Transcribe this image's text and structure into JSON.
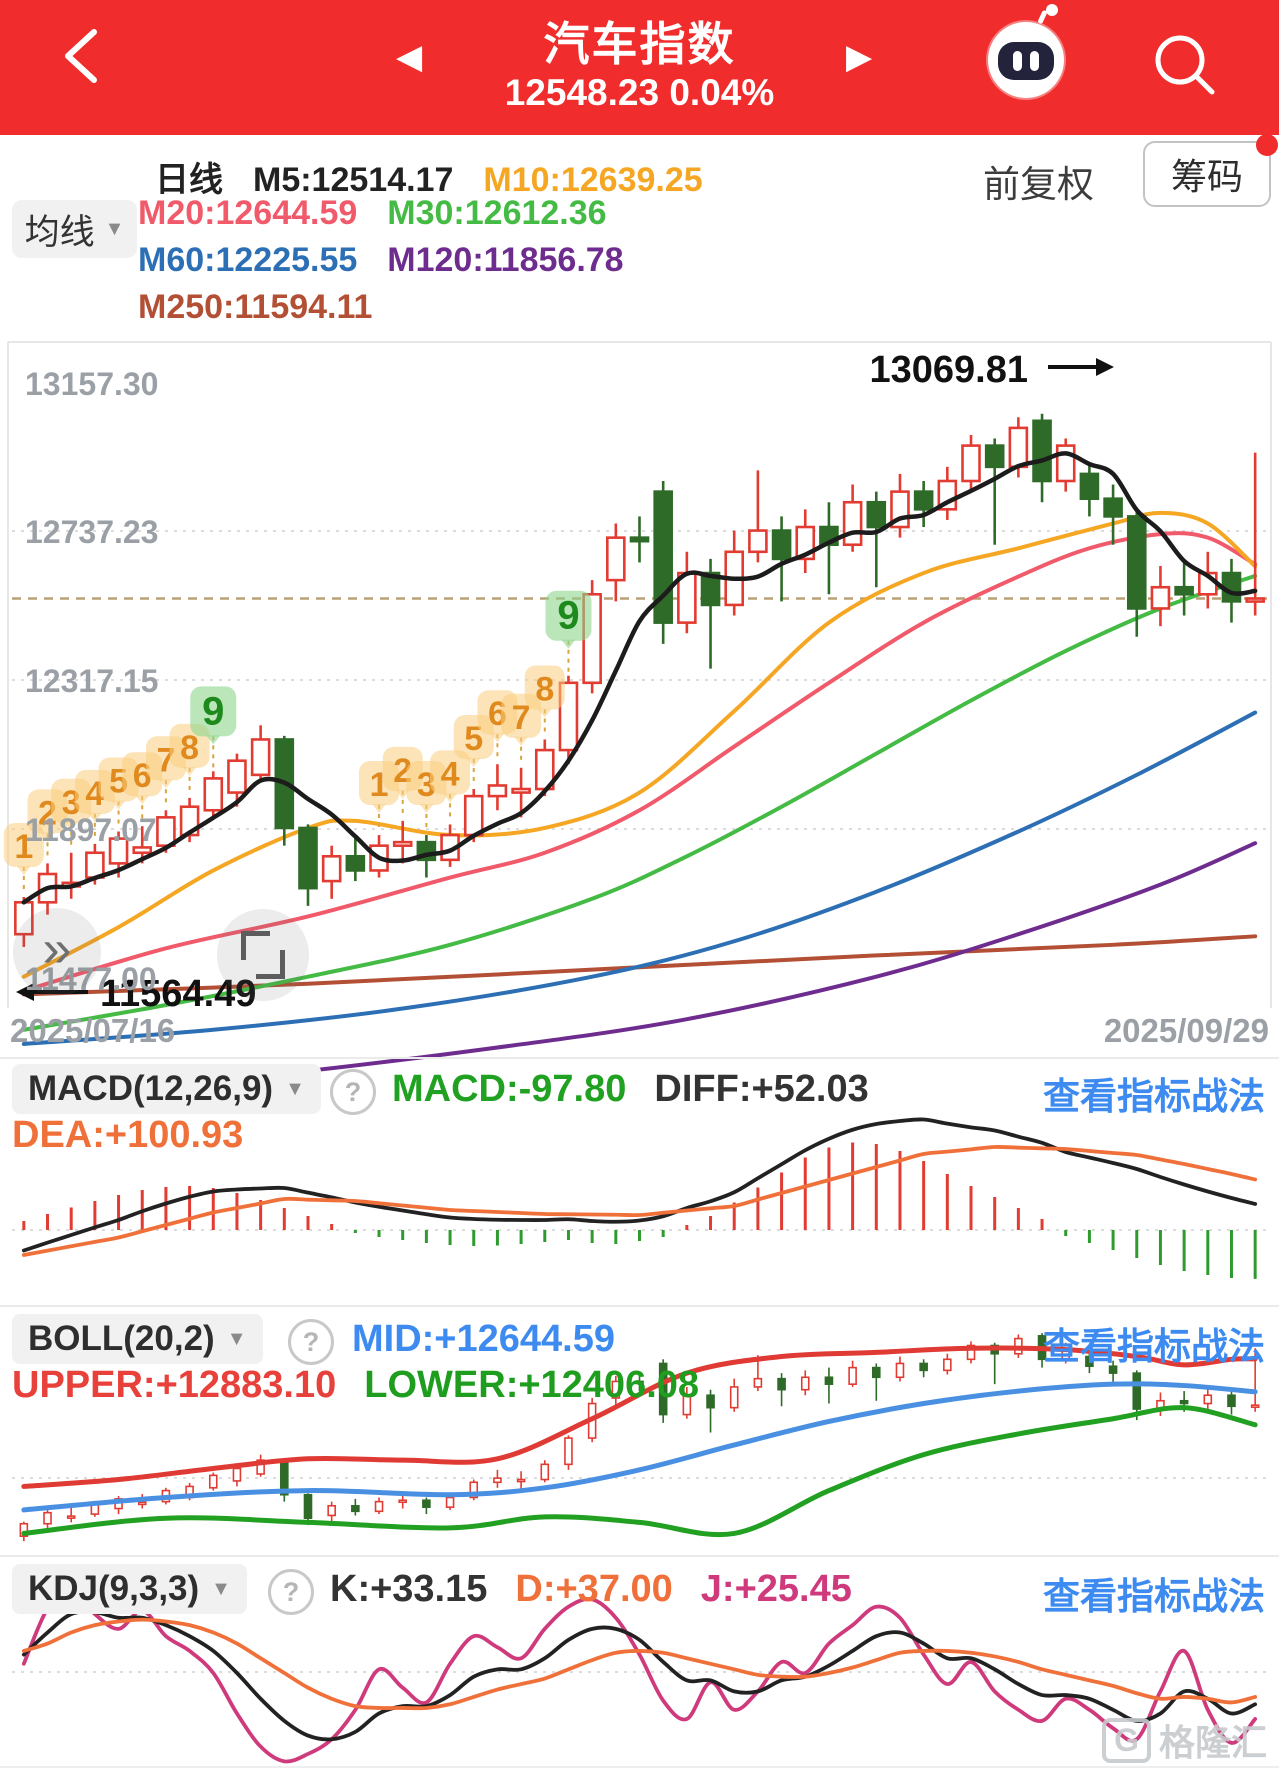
{
  "ui": {
    "help_glyph": "?",
    "dropdown_arrow": "▼",
    "prev_glyph": "◀",
    "next_glyph": "▶",
    "fast_glyph": "»"
  },
  "header": {
    "title": "汽车指数",
    "price_line": "12548.23 0.04%"
  },
  "toolbar": {
    "ma_dropdown_label": "均线",
    "period_label": "日线",
    "adjust_label": "前复权",
    "chips_button_label": "筹码",
    "ma_items": [
      {
        "text": "M5:12514.17",
        "color": "#222222"
      },
      {
        "text": "M10:12639.25",
        "color": "#f5a623"
      },
      {
        "text": "M20:12644.59",
        "color": "#f05a6a"
      },
      {
        "text": "M30:12612.36",
        "color": "#44bb44"
      },
      {
        "text": "M60:12225.55",
        "color": "#2d6fb5"
      },
      {
        "text": "M120:11856.78",
        "color": "#6e2d8e"
      },
      {
        "text": "M250:11594.11",
        "color": "#b24f35"
      }
    ],
    "ma_rows": [
      [
        0,
        1
      ],
      [
        2,
        3
      ],
      [
        4,
        5
      ],
      [
        6
      ]
    ]
  },
  "panels": {
    "macd": {
      "name": "MACD(12,26,9)",
      "link": "查看指标战法",
      "values": [
        {
          "text": "MACD:-97.80",
          "color": "#21a121"
        },
        {
          "text": "DIFF:+52.03",
          "color": "#333333"
        },
        {
          "text": "DEA:+100.93",
          "color": "#f0703a"
        }
      ],
      "rows": [
        [
          0,
          1
        ],
        [
          2
        ]
      ]
    },
    "boll": {
      "name": "BOLL(20,2)",
      "link": "查看指标战法",
      "values": [
        {
          "text": "MID:+12644.59",
          "color": "#3d8bf0"
        },
        {
          "text": "UPPER:+12883.10",
          "color": "#e8403a"
        },
        {
          "text": "LOWER:+12406.08",
          "color": "#1f9d1f"
        }
      ],
      "rows": [
        [
          0
        ],
        [
          1,
          2
        ]
      ]
    },
    "kdj": {
      "name": "KDJ(9,3,3)",
      "link": "查看指标战法",
      "values": [
        {
          "text": "K:+33.15",
          "color": "#333333"
        },
        {
          "text": "D:+37.00",
          "color": "#f0703a"
        },
        {
          "text": "J:+25.45",
          "color": "#cf3a7c"
        }
      ],
      "rows": [
        [
          0,
          1,
          2
        ]
      ]
    }
  },
  "watermark": {
    "g": "G",
    "text": "格隆汇"
  },
  "chart_data": {
    "type": "candlestick+indicators",
    "date_start": "2025/07/16",
    "date_end": "2025/09/29",
    "y_axis_labels": [
      "13157.30",
      "12737.23",
      "12317.15",
      "11897.07",
      "11477.00"
    ],
    "y_top_price": 13250,
    "y_bottom_price": 11400,
    "last_price": 12548.23,
    "low_annotation": "11564.49",
    "high_annotation": "13069.81",
    "colors": {
      "up": "#e23b32",
      "down": "#2f6b28",
      "grid": "#dcdcdc",
      "axis_text": "#9aa0a6",
      "last_price_line": "#b9a077",
      "m5": "#1c1c1c",
      "m10": "#f5a623",
      "m20": "#f05a6a",
      "m30": "#44bb44",
      "m60": "#2d6fb5",
      "m120": "#6e2d8e",
      "m250": "#b24f35",
      "macd_dea": "#f0703a",
      "macd_diff": "#222222",
      "hist_up": "#e23b32",
      "hist_down": "#2f9b2f",
      "boll_upper": "#e03a34",
      "boll_mid": "#4a90e2",
      "boll_lower": "#22a022",
      "kdj_k": "#222222",
      "kdj_d": "#f0703a",
      "kdj_j": "#cf3a7c",
      "badge_orange_bg": "rgba(250,205,125,0.55)",
      "badge_orange_text": "#e08a1e",
      "badge_green_bg": "rgba(140,214,140,0.6)",
      "badge_green_text": "#1e8a1e"
    },
    "candles": [
      [
        11600,
        11705,
        11564,
        11690
      ],
      [
        11690,
        11800,
        11655,
        11770
      ],
      [
        11735,
        11830,
        11700,
        11745
      ],
      [
        11760,
        11855,
        11740,
        11830
      ],
      [
        11800,
        11890,
        11760,
        11870
      ],
      [
        11830,
        11905,
        11800,
        11845
      ],
      [
        11850,
        11950,
        11830,
        11930
      ],
      [
        11880,
        11985,
        11860,
        11960
      ],
      [
        11950,
        12060,
        11930,
        12040
      ],
      [
        12000,
        12110,
        11960,
        12090
      ],
      [
        12050,
        12190,
        12030,
        12150
      ],
      [
        12150,
        12160,
        11850,
        11900
      ],
      [
        11900,
        11910,
        11680,
        11730
      ],
      [
        11750,
        11850,
        11700,
        11820
      ],
      [
        11820,
        11870,
        11750,
        11780
      ],
      [
        11780,
        11880,
        11760,
        11850
      ],
      [
        11850,
        11920,
        11800,
        11860
      ],
      [
        11860,
        11880,
        11760,
        11810
      ],
      [
        11810,
        11910,
        11790,
        11880
      ],
      [
        11880,
        12010,
        11860,
        11990
      ],
      [
        11990,
        12080,
        11950,
        12020
      ],
      [
        12000,
        12070,
        11930,
        12010
      ],
      [
        12010,
        12150,
        11990,
        12120
      ],
      [
        12120,
        12330,
        12080,
        12310
      ],
      [
        12310,
        12600,
        12280,
        12560
      ],
      [
        12600,
        12760,
        12540,
        12720
      ],
      [
        12720,
        12780,
        12650,
        12710
      ],
      [
        12850,
        12880,
        12420,
        12480
      ],
      [
        12480,
        12680,
        12450,
        12620
      ],
      [
        12620,
        12660,
        12350,
        12530
      ],
      [
        12530,
        12740,
        12500,
        12680
      ],
      [
        12680,
        12910,
        12650,
        12740
      ],
      [
        12740,
        12780,
        12540,
        12660
      ],
      [
        12660,
        12800,
        12620,
        12750
      ],
      [
        12750,
        12820,
        12560,
        12700
      ],
      [
        12700,
        12870,
        12680,
        12820
      ],
      [
        12820,
        12850,
        12580,
        12750
      ],
      [
        12750,
        12900,
        12720,
        12850
      ],
      [
        12850,
        12880,
        12750,
        12800
      ],
      [
        12800,
        12920,
        12770,
        12880
      ],
      [
        12880,
        13010,
        12850,
        12980
      ],
      [
        12980,
        13000,
        12700,
        12920
      ],
      [
        12920,
        13060,
        12890,
        13030
      ],
      [
        13050,
        13069.81,
        12820,
        12880
      ],
      [
        12880,
        13000,
        12850,
        12980
      ],
      [
        12900,
        12930,
        12780,
        12830
      ],
      [
        12830,
        12870,
        12700,
        12780
      ],
      [
        12780,
        12800,
        12440,
        12520
      ],
      [
        12520,
        12640,
        12470,
        12580
      ],
      [
        12580,
        12650,
        12500,
        12560
      ],
      [
        12560,
        12680,
        12520,
        12620
      ],
      [
        12620,
        12660,
        12480,
        12540
      ],
      [
        12540,
        12960,
        12500,
        12548
      ]
    ],
    "badge_sequences": [
      {
        "bars": [
          0,
          1,
          2,
          3,
          4,
          5,
          6,
          7,
          8
        ],
        "numbers": [
          1,
          2,
          3,
          4,
          5,
          6,
          7,
          8,
          9
        ]
      },
      {
        "bars": [
          15,
          16,
          17,
          18,
          19,
          20,
          21,
          22,
          23
        ],
        "numbers": [
          1,
          2,
          3,
          4,
          5,
          6,
          7,
          8,
          9
        ]
      }
    ],
    "ma_ctrl": {
      "m10": [
        [
          0,
          11480
        ],
        [
          4,
          11620
        ],
        [
          8,
          11780
        ],
        [
          12,
          11900
        ],
        [
          14,
          11920
        ],
        [
          18,
          11880
        ],
        [
          22,
          11900
        ],
        [
          26,
          12000
        ],
        [
          30,
          12230
        ],
        [
          34,
          12480
        ],
        [
          38,
          12620
        ],
        [
          42,
          12690
        ],
        [
          46,
          12760
        ],
        [
          48,
          12790
        ],
        [
          50,
          12760
        ],
        [
          52,
          12639
        ]
      ],
      "m20": [
        [
          0,
          11440
        ],
        [
          6,
          11560
        ],
        [
          12,
          11650
        ],
        [
          18,
          11760
        ],
        [
          22,
          11830
        ],
        [
          26,
          11950
        ],
        [
          30,
          12130
        ],
        [
          34,
          12310
        ],
        [
          38,
          12480
        ],
        [
          42,
          12610
        ],
        [
          45,
          12690
        ],
        [
          48,
          12730
        ],
        [
          50,
          12720
        ],
        [
          52,
          12645
        ]
      ],
      "m30": [
        [
          0,
          11330
        ],
        [
          6,
          11400
        ],
        [
          12,
          11480
        ],
        [
          18,
          11570
        ],
        [
          24,
          11700
        ],
        [
          28,
          11820
        ],
        [
          32,
          11960
        ],
        [
          36,
          12110
        ],
        [
          40,
          12260
        ],
        [
          44,
          12400
        ],
        [
          48,
          12520
        ],
        [
          52,
          12612
        ]
      ],
      "m60": [
        [
          0,
          11290
        ],
        [
          8,
          11330
        ],
        [
          16,
          11390
        ],
        [
          24,
          11480
        ],
        [
          30,
          11580
        ],
        [
          36,
          11720
        ],
        [
          42,
          11890
        ],
        [
          47,
          12050
        ],
        [
          52,
          12226
        ]
      ],
      "m120": [
        [
          0,
          11150
        ],
        [
          10,
          11200
        ],
        [
          20,
          11280
        ],
        [
          28,
          11360
        ],
        [
          36,
          11480
        ],
        [
          42,
          11600
        ],
        [
          48,
          11740
        ],
        [
          52,
          11857
        ]
      ],
      "m250": [
        [
          0,
          11430
        ],
        [
          12,
          11460
        ],
        [
          24,
          11500
        ],
        [
          36,
          11540
        ],
        [
          46,
          11570
        ],
        [
          52,
          11594
        ]
      ]
    },
    "macd": {
      "hist": [
        18,
        32,
        45,
        58,
        70,
        80,
        86,
        88,
        84,
        74,
        60,
        44,
        28,
        12,
        -6,
        -14,
        -20,
        -26,
        -30,
        -32,
        -31,
        -28,
        -24,
        -20,
        -26,
        -28,
        -22,
        -14,
        10,
        28,
        55,
        85,
        115,
        145,
        165,
        175,
        172,
        158,
        138,
        112,
        88,
        66,
        44,
        22,
        -12,
        -26,
        -40,
        -56,
        -70,
        -82,
        -90,
        -96,
        -97.8
      ],
      "dea_ctrl": [
        [
          0,
          -50
        ],
        [
          4,
          -15
        ],
        [
          8,
          35
        ],
        [
          11,
          62
        ],
        [
          14,
          58
        ],
        [
          18,
          40
        ],
        [
          22,
          32
        ],
        [
          26,
          30
        ],
        [
          30,
          48
        ],
        [
          34,
          100
        ],
        [
          38,
          152
        ],
        [
          41,
          166
        ],
        [
          44,
          162
        ],
        [
          47,
          150
        ],
        [
          49,
          132
        ],
        [
          51,
          112
        ],
        [
          52,
          101
        ]
      ]
    },
    "boll": {
      "upper": [
        [
          0,
          11960
        ],
        [
          4,
          12010
        ],
        [
          8,
          12090
        ],
        [
          12,
          12160
        ],
        [
          16,
          12150
        ],
        [
          20,
          12160
        ],
        [
          24,
          12450
        ],
        [
          28,
          12780
        ],
        [
          32,
          12900
        ],
        [
          36,
          12930
        ],
        [
          40,
          12960
        ],
        [
          44,
          12950
        ],
        [
          47,
          12900
        ],
        [
          49,
          12840
        ],
        [
          51,
          12880
        ],
        [
          52,
          12883
        ]
      ],
      "mid": [
        [
          0,
          11790
        ],
        [
          6,
          11880
        ],
        [
          12,
          11930
        ],
        [
          18,
          11900
        ],
        [
          22,
          11950
        ],
        [
          26,
          12080
        ],
        [
          30,
          12260
        ],
        [
          34,
          12430
        ],
        [
          38,
          12560
        ],
        [
          42,
          12650
        ],
        [
          46,
          12700
        ],
        [
          49,
          12690
        ],
        [
          52,
          12645
        ]
      ],
      "lower": [
        [
          0,
          11620
        ],
        [
          6,
          11730
        ],
        [
          12,
          11700
        ],
        [
          18,
          11660
        ],
        [
          22,
          11740
        ],
        [
          26,
          11700
        ],
        [
          30,
          11620
        ],
        [
          34,
          11930
        ],
        [
          38,
          12190
        ],
        [
          42,
          12340
        ],
        [
          46,
          12450
        ],
        [
          49,
          12530
        ],
        [
          52,
          12406
        ]
      ]
    },
    "kdj": {
      "j": [
        55,
        85,
        95,
        82,
        74,
        84,
        70,
        62,
        50,
        28,
        10,
        2,
        6,
        14,
        30,
        52,
        42,
        34,
        55,
        70,
        64,
        58,
        74,
        86,
        90,
        80,
        60,
        35,
        25,
        45,
        30,
        40,
        56,
        50,
        66,
        76,
        86,
        80,
        60,
        44,
        56,
        40,
        30,
        24,
        36,
        30,
        20,
        14,
        40,
        62,
        30,
        12,
        25
      ],
      "k": [
        60,
        72,
        82,
        83,
        80,
        80,
        76,
        70,
        62,
        50,
        36,
        24,
        16,
        14,
        18,
        28,
        32,
        32,
        38,
        48,
        52,
        52,
        58,
        68,
        74,
        74,
        68,
        56,
        46,
        46,
        40,
        40,
        46,
        48,
        54,
        62,
        70,
        72,
        66,
        58,
        58,
        52,
        44,
        38,
        38,
        36,
        30,
        24,
        28,
        40,
        36,
        28,
        33
      ],
      "d": [
        62,
        66,
        72,
        76,
        78,
        79,
        78,
        76,
        72,
        66,
        58,
        50,
        42,
        36,
        32,
        31,
        31,
        31,
        33,
        37,
        41,
        44,
        47,
        52,
        57,
        61,
        62,
        61,
        58,
        55,
        52,
        49,
        48,
        48,
        50,
        53,
        57,
        61,
        62,
        62,
        61,
        59,
        56,
        52,
        49,
        46,
        43,
        39,
        36,
        37,
        36,
        34,
        37
      ]
    }
  }
}
